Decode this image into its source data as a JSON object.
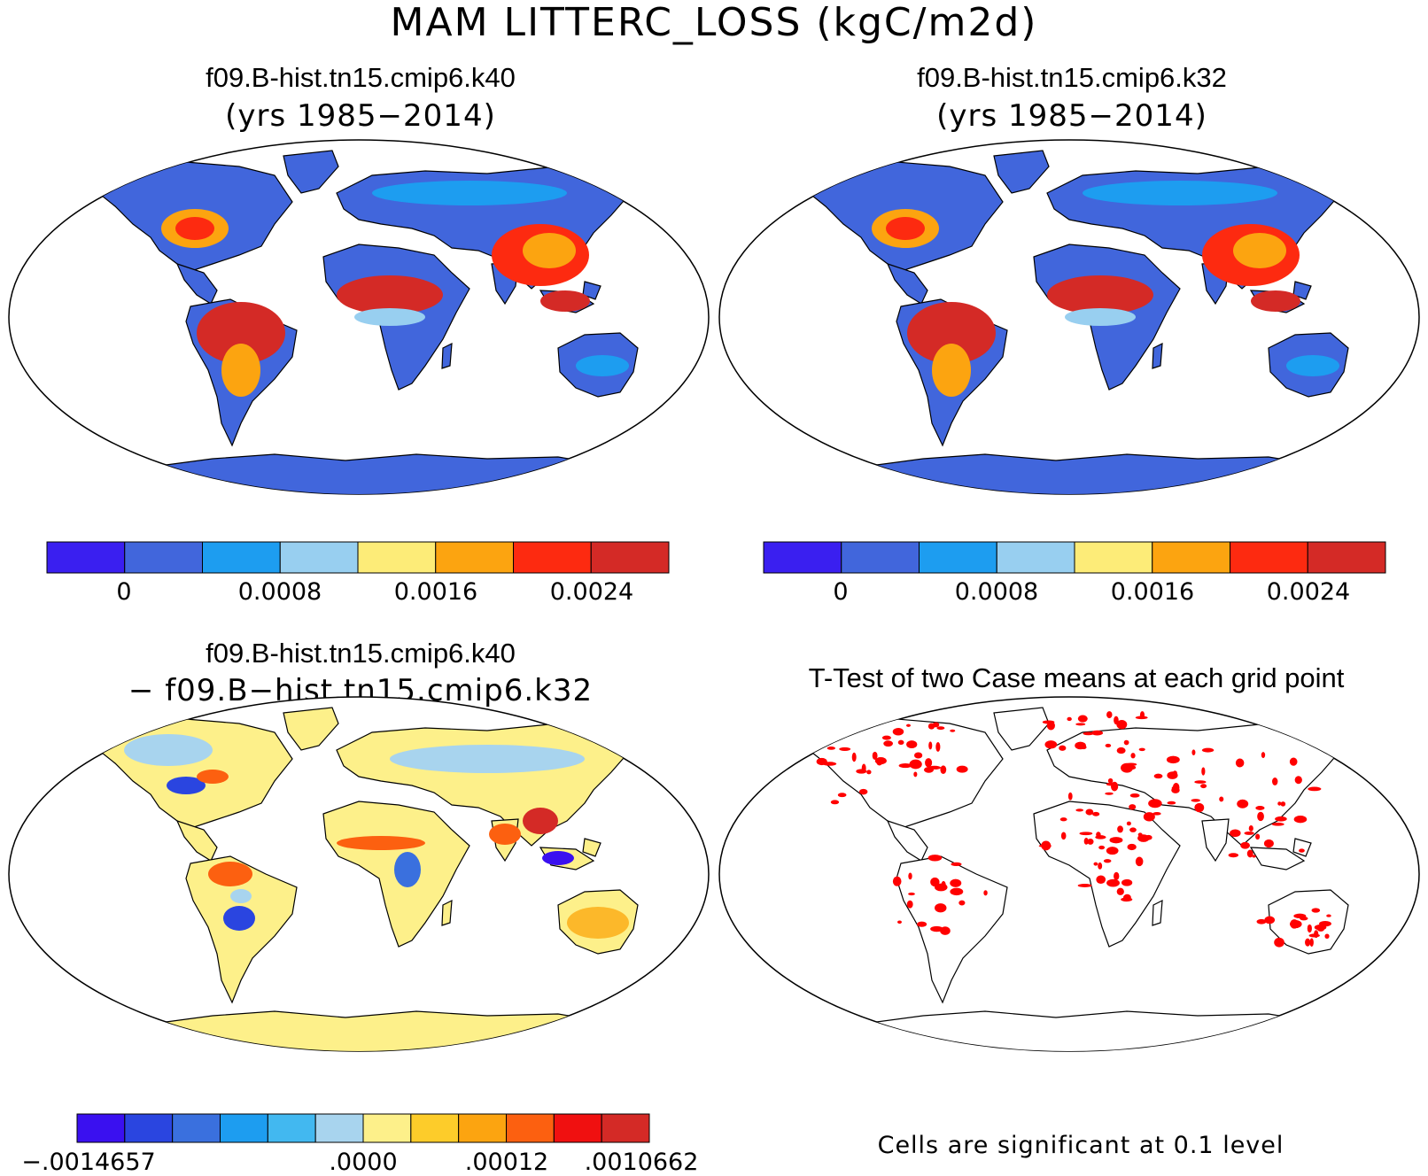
{
  "figure": {
    "title": "MAM LITTERC_LOSS (kgC/m2d)"
  },
  "panels": {
    "case1": {
      "name": "f09.B-hist.tn15.cmip6.k40",
      "years": "(yrs 1985−2014)"
    },
    "case2": {
      "name": "f09.B-hist.tn15.cmip6.k32",
      "years": "(yrs 1985−2014)"
    },
    "diff": {
      "line1": "f09.B-hist.tn15.cmip6.k40",
      "line2": "− f09.B−hist.tn15.cmip6.k32"
    },
    "ttest": {
      "title": "T-Test of two Case means at each grid point",
      "note": "Cells are significant at 0.1 level"
    }
  },
  "colorbar_case": {
    "colors": [
      "#3a1ff0",
      "#4166dc",
      "#1d9df0",
      "#98cff0",
      "#fdec78",
      "#fca410",
      "#fd2a10",
      "#d42a26"
    ],
    "labels": [
      "0",
      "0.0008",
      "0.0016",
      "0.0024"
    ]
  },
  "colorbar_diff": {
    "colors": [
      "#3a10f0",
      "#2a45e0",
      "#3a70de",
      "#1d9df0",
      "#42b8f0",
      "#a8d4ee",
      "#fdf08a",
      "#fdcc2a",
      "#fca410",
      "#fc6010",
      "#f01010",
      "#d42a26"
    ],
    "labels": [
      ".0014657",
      ".0000",
      ".00012",
      ".0010662"
    ],
    "first_label": "−.0014657"
  },
  "ttest": {
    "significant_color": "#ff0000"
  }
}
